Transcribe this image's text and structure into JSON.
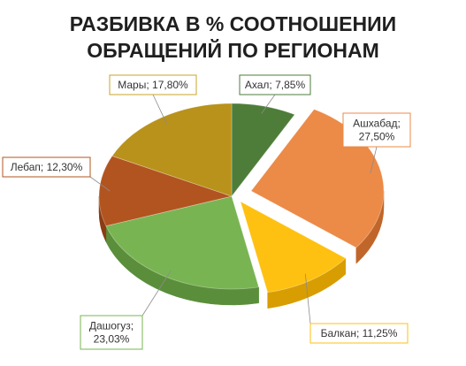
{
  "chart_data": {
    "type": "pie",
    "title": "РАЗБИВКА В % СООТНОШЕНИИ\nОБРАЩЕНИЙ ПО РЕГИОНАМ",
    "slices": [
      {
        "label": "Ахал",
        "value": 7.85,
        "display": "Ахал; 7,85%",
        "lines": [
          "Ахал; 7,85%"
        ],
        "color": "#4e7d3a",
        "side": "#3b5f2c",
        "border": "#4e7d3a"
      },
      {
        "label": "Ашхабад",
        "value": 27.5,
        "display": "Ашхабад; 27,50%",
        "lines": [
          "Ашхабад;",
          "27,50%"
        ],
        "color": "#ec8a47",
        "side": "#c0662b",
        "border": "#ec8a47"
      },
      {
        "label": "Балкан",
        "value": 11.25,
        "display": "Балкан; 11,25%",
        "lines": [
          "Балкан; 11,25%"
        ],
        "color": "#fec111",
        "side": "#d89d00",
        "border": "#fec111"
      },
      {
        "label": "Дашогуз",
        "value": 23.03,
        "display": "Дашогуз; 23,03%",
        "lines": [
          "Дашогуз;",
          "23,03%"
        ],
        "color": "#79b452",
        "side": "#5b8e3b",
        "border": "#79b452"
      },
      {
        "label": "Лебап",
        "value": 12.3,
        "display": "Лебап; 12,30%",
        "lines": [
          "Лебап; 12,30%"
        ],
        "color": "#b2541f",
        "side": "#8a3c13",
        "border": "#b2541f"
      },
      {
        "label": "Мары",
        "value": 17.8,
        "display": "Мары; 17,80%",
        "lines": [
          "Мары; 17,80%"
        ],
        "color": "#b8921b",
        "side": "#8e6f10",
        "border": "#c9a62a"
      }
    ],
    "legend": "none",
    "grid": false
  }
}
